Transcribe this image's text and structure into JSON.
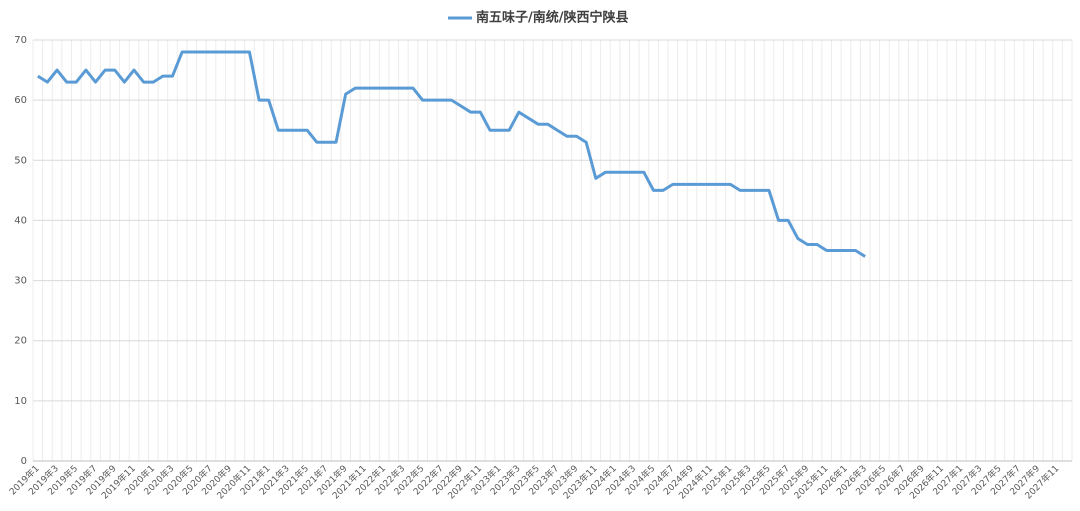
{
  "chart_data": {
    "type": "line",
    "categories": [
      "2019年1",
      null,
      "2019年3",
      null,
      "2019年5",
      null,
      "2019年7",
      null,
      "2019年9",
      null,
      "2019年11",
      null,
      "2020年1",
      null,
      "2020年3",
      null,
      "2020年5",
      null,
      "2020年7",
      null,
      "2020年9",
      null,
      "2020年11",
      null,
      "2021年1",
      null,
      "2021年3",
      null,
      "2021年5",
      null,
      "2021年7",
      null,
      "2021年9",
      null,
      "2021年11",
      null,
      "2022年1",
      null,
      "2022年3",
      null,
      "2022年5",
      null,
      "2022年7",
      null,
      "2022年9",
      null,
      "2022年11",
      null,
      "2023年1",
      null,
      "2023年3",
      null,
      "2023年5",
      null,
      "2023年7",
      null,
      "2023年9",
      null,
      "2023年11",
      null,
      "2024年1",
      null,
      "2024年3",
      null,
      "2024年5",
      null,
      "2024年7",
      null,
      "2024年9",
      null,
      "2024年11",
      null,
      "2025年1",
      null,
      "2025年3",
      null,
      "2025年5",
      null,
      "2025年7",
      null,
      "2025年9",
      null,
      "2025年11",
      null,
      "2026年1",
      null,
      "2026年3",
      null,
      "2026年5",
      null,
      "2026年7",
      null,
      "2026年9",
      null,
      "2026年11",
      null,
      "2027年1",
      null,
      "2027年3",
      null,
      "2027年5",
      null,
      "2027年7",
      null,
      "2027年9",
      null,
      "2027年11",
      null
    ],
    "series": [
      {
        "name": "南五味子/南统/陕西宁陕县",
        "color": "#5b9bd5",
        "values": [
          64,
          63,
          65,
          63,
          63,
          65,
          63,
          65,
          65,
          63,
          65,
          63,
          63,
          64,
          64,
          68,
          68,
          68,
          68,
          68,
          68,
          68,
          68,
          60,
          60,
          55,
          55,
          55,
          55,
          53,
          53,
          53,
          61,
          62,
          62,
          62,
          62,
          62,
          62,
          62,
          60,
          60,
          60,
          60,
          59,
          58,
          58,
          55,
          55,
          55,
          58,
          57,
          56,
          56,
          55,
          54,
          54,
          53,
          47,
          48,
          48,
          48,
          48,
          48,
          45,
          45,
          46,
          46,
          46,
          46,
          46,
          46,
          46,
          45,
          45,
          45,
          45,
          40,
          40,
          37,
          36,
          36,
          35,
          35,
          35,
          35,
          34,
          null,
          null,
          null,
          null,
          null,
          null,
          null,
          null,
          null,
          null,
          null,
          null,
          null,
          null,
          null,
          null,
          null,
          null,
          null,
          null,
          null
        ]
      }
    ],
    "ylim": [
      0,
      70
    ],
    "yticks": [
      0,
      10,
      20,
      30,
      40,
      50,
      60,
      70
    ],
    "grid": true,
    "legend": "top"
  }
}
